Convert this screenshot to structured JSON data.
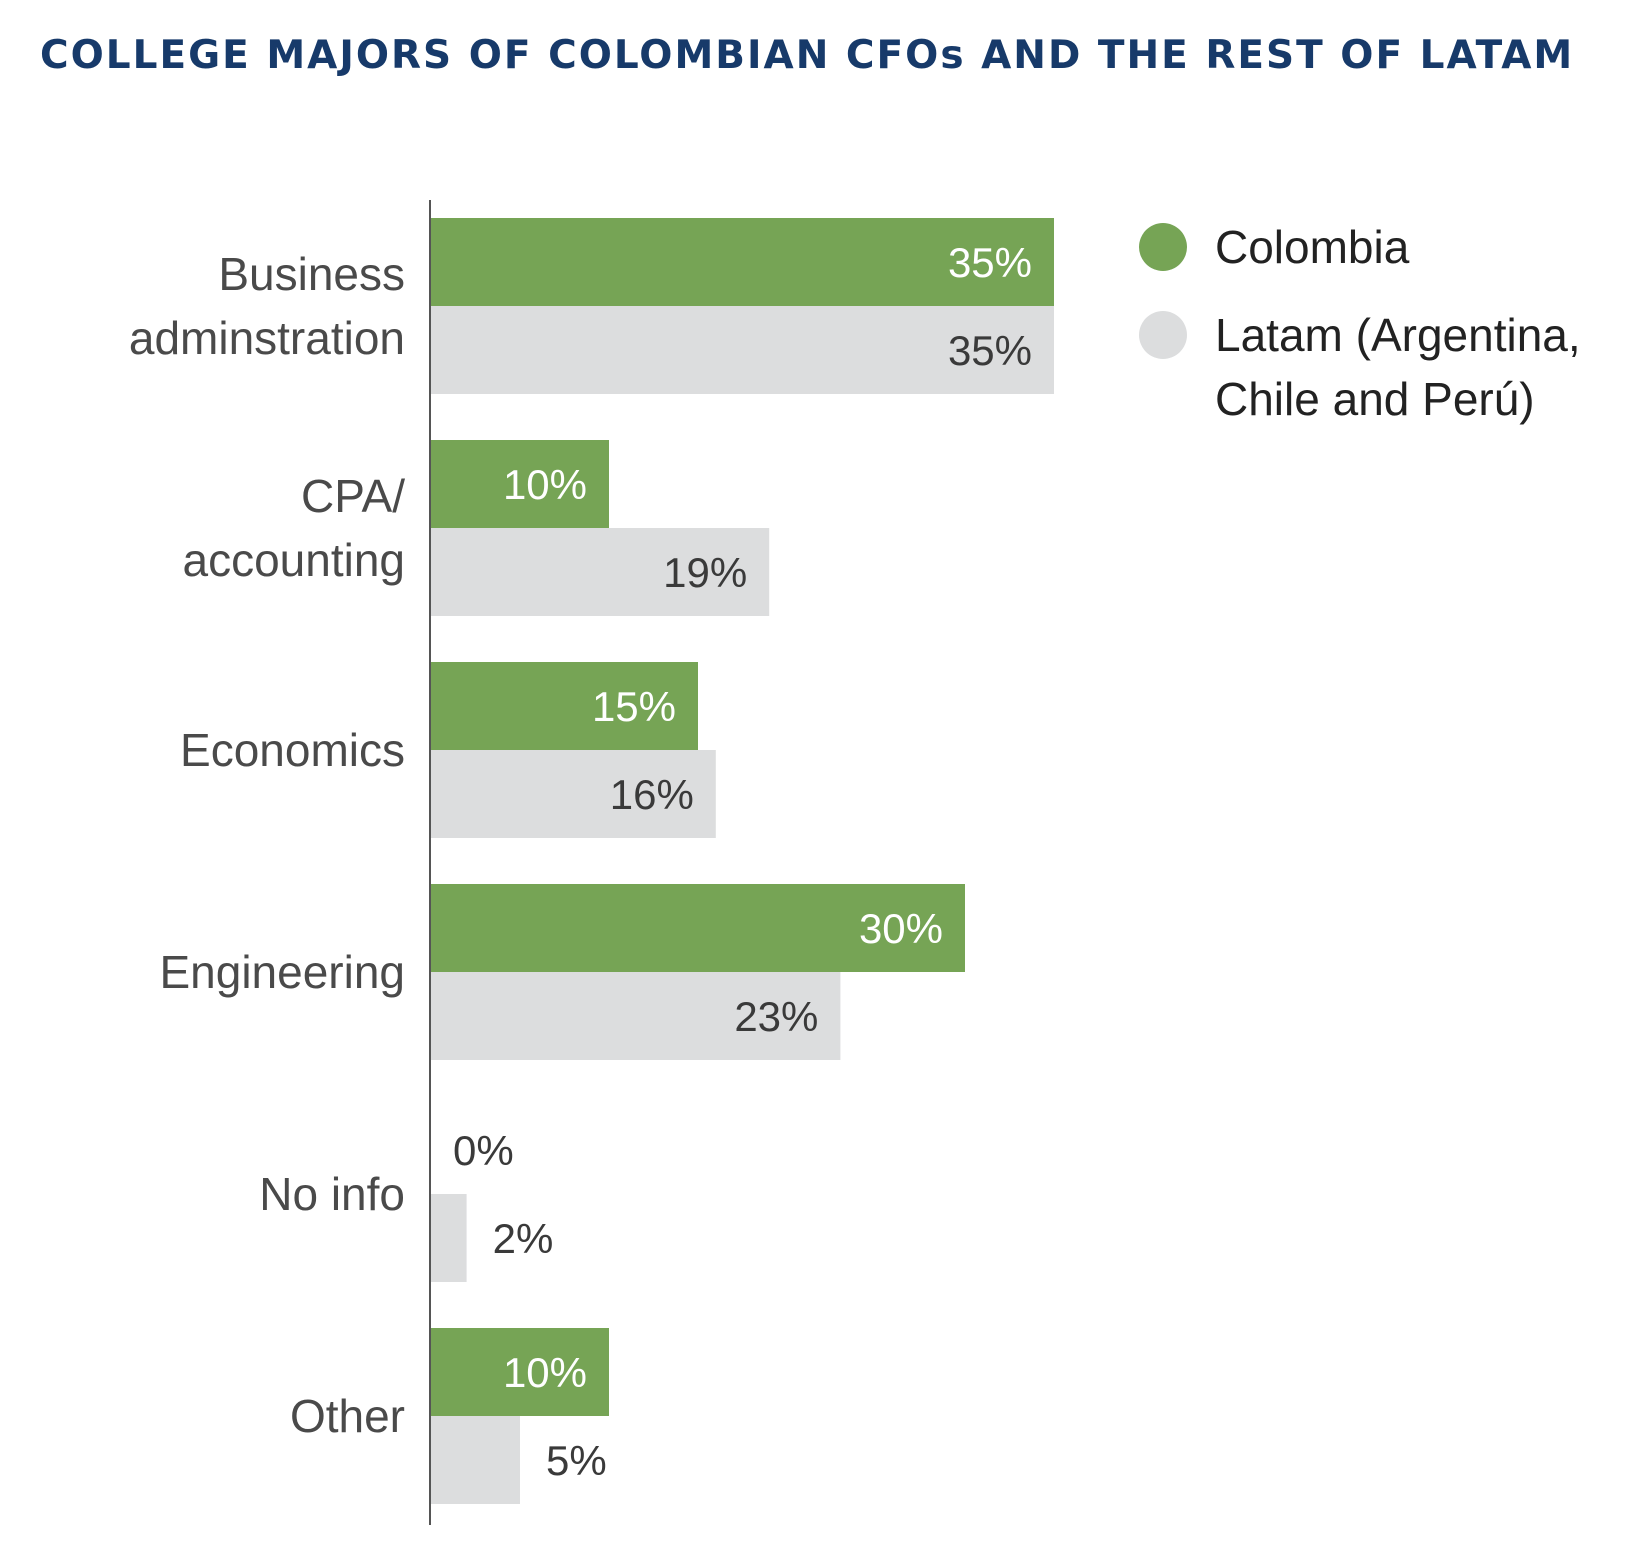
{
  "chart_data": {
    "type": "bar",
    "orientation": "horizontal",
    "title": "COLLEGE MAJORS OF COLOMBIAN CFOs AND THE REST OF LATAM",
    "categories": [
      [
        "Business",
        "adminstration"
      ],
      [
        "CPA/",
        "accounting"
      ],
      [
        "Economics"
      ],
      [
        "Engineering"
      ],
      [
        "No info"
      ],
      [
        "Other"
      ]
    ],
    "series": [
      {
        "name": "Colombia",
        "color": "#76a455",
        "values": [
          35,
          10,
          15,
          30,
          0,
          10
        ],
        "labels": [
          "35%",
          "10%",
          "15%",
          "30%",
          "0%",
          "10%"
        ]
      },
      {
        "name": [
          "Latam (Argentina,",
          "Chile and Perú)"
        ],
        "color": "#dcddde",
        "values": [
          35,
          19,
          16,
          23,
          2,
          5
        ],
        "labels": [
          "35%",
          "19%",
          "16%",
          "23%",
          "2%",
          "5%"
        ]
      }
    ],
    "xlim": [
      0,
      35
    ],
    "grid": false,
    "legend_position": "top-right"
  }
}
